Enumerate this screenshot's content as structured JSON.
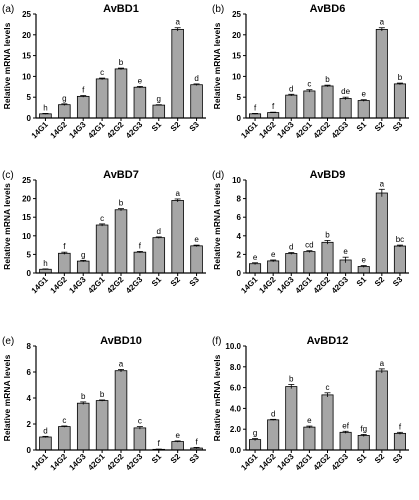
{
  "colors": {
    "bar_fill": "#a6a6a6",
    "bar_stroke": "#000000",
    "axis": "#000000",
    "text": "#000000"
  },
  "chart_data": [
    {
      "panel": "(a)",
      "type": "bar",
      "title": "AvBD1",
      "xlabel": "",
      "ylabel": "Relative mRNA levels",
      "categories": [
        "14G1",
        "14G2",
        "14G3",
        "42G1",
        "42G2",
        "42G3",
        "S1",
        "S2",
        "S3"
      ],
      "values": [
        1.0,
        3.2,
        5.2,
        9.4,
        11.8,
        7.4,
        3.1,
        21.3,
        8.0
      ],
      "errors": [
        0.1,
        0.2,
        0.2,
        0.2,
        0.2,
        0.2,
        0.1,
        0.4,
        0.2
      ],
      "labels": [
        "h",
        "g",
        "f",
        "c",
        "b",
        "e",
        "g",
        "a",
        "d"
      ],
      "ylim": [
        0,
        25
      ],
      "yticks": [
        "0",
        "5",
        "10",
        "15",
        "20",
        "25"
      ],
      "grid": false
    },
    {
      "panel": "(b)",
      "type": "bar",
      "title": "AvBD6",
      "xlabel": "",
      "ylabel": "Relative mRNA levels",
      "categories": [
        "14G1",
        "14G2",
        "14G3",
        "42G1",
        "42G2",
        "42G3",
        "S1",
        "S2",
        "S3"
      ],
      "values": [
        1.0,
        1.3,
        5.5,
        6.5,
        7.7,
        4.7,
        4.2,
        21.3,
        8.2
      ],
      "errors": [
        0.1,
        0.1,
        0.2,
        0.3,
        0.2,
        0.3,
        0.2,
        0.4,
        0.2
      ],
      "labels": [
        "f",
        "f",
        "d",
        "c",
        "b",
        "de",
        "e",
        "a",
        "b"
      ],
      "ylim": [
        0,
        25
      ],
      "yticks": [
        "0",
        "5",
        "10",
        "15",
        "20",
        "25"
      ],
      "grid": false
    },
    {
      "panel": "(c)",
      "type": "bar",
      "title": "AvBD7",
      "xlabel": "",
      "ylabel": "Relative mRNA levels",
      "categories": [
        "14G1",
        "14G2",
        "14G3",
        "42G1",
        "42G2",
        "42G3",
        "S1",
        "S2",
        "S3"
      ],
      "values": [
        1.0,
        5.3,
        3.2,
        12.9,
        17.0,
        5.6,
        9.5,
        19.5,
        7.3
      ],
      "errors": [
        0.1,
        0.3,
        0.2,
        0.3,
        0.3,
        0.2,
        0.2,
        0.4,
        0.2
      ],
      "labels": [
        "h",
        "f",
        "g",
        "c",
        "b",
        "f",
        "d",
        "a",
        "e"
      ],
      "ylim": [
        0,
        25
      ],
      "yticks": [
        "0",
        "5",
        "10",
        "15",
        "20",
        "25"
      ],
      "grid": false
    },
    {
      "panel": "(d)",
      "type": "bar",
      "title": "AvBD9",
      "xlabel": "",
      "ylabel": "Relative mRNA levels",
      "categories": [
        "14G1",
        "14G2",
        "14G3",
        "42G1",
        "42G2",
        "42G3",
        "S1",
        "S2",
        "S3"
      ],
      "values": [
        1.0,
        1.3,
        2.1,
        2.3,
        3.3,
        1.4,
        0.7,
        8.6,
        2.9
      ],
      "errors": [
        0.1,
        0.1,
        0.1,
        0.1,
        0.2,
        0.3,
        0.1,
        0.4,
        0.1
      ],
      "labels": [
        "e",
        "e",
        "d",
        "cd",
        "b",
        "e",
        "e",
        "a",
        "bc"
      ],
      "ylim": [
        0,
        10
      ],
      "yticks": [
        "0",
        "2",
        "4",
        "6",
        "8",
        "10"
      ],
      "grid": false
    },
    {
      "panel": "(e)",
      "type": "bar",
      "title": "AvBD10",
      "xlabel": "",
      "ylabel": "Relative mRNA levels",
      "categories": [
        "14G1",
        "14G2",
        "14G3",
        "42G1",
        "42G2",
        "42G3",
        "S1",
        "S2",
        "S3"
      ],
      "values": [
        1.0,
        1.8,
        3.6,
        3.8,
        6.1,
        1.7,
        0.05,
        0.65,
        0.15
      ],
      "errors": [
        0.05,
        0.05,
        0.1,
        0.05,
        0.1,
        0.1,
        0.02,
        0.05,
        0.05
      ],
      "labels": [
        "d",
        "c",
        "b",
        "b",
        "a",
        "c",
        "f",
        "e",
        "f"
      ],
      "ylim": [
        0,
        8
      ],
      "yticks": [
        "0",
        "2",
        "4",
        "6",
        "8"
      ],
      "grid": false
    },
    {
      "panel": "(f)",
      "type": "bar",
      "title": "AvBD12",
      "xlabel": "",
      "ylabel": "Relative mRNA levels",
      "categories": [
        "14G1",
        "14G2",
        "14G3",
        "42G1",
        "42G2",
        "42G3",
        "S1",
        "S2",
        "S3"
      ],
      "values": [
        1.0,
        2.9,
        6.1,
        2.2,
        5.3,
        1.7,
        1.4,
        7.6,
        1.6
      ],
      "errors": [
        0.1,
        0.05,
        0.2,
        0.1,
        0.2,
        0.1,
        0.1,
        0.2,
        0.1
      ],
      "labels": [
        "g",
        "d",
        "b",
        "e",
        "c",
        "ef",
        "fg",
        "a",
        "f"
      ],
      "ylim": [
        0,
        10
      ],
      "yticks": [
        "0.0",
        "2.0",
        "4.0",
        "6.0",
        "8.0",
        "10.0"
      ],
      "grid": false
    }
  ]
}
